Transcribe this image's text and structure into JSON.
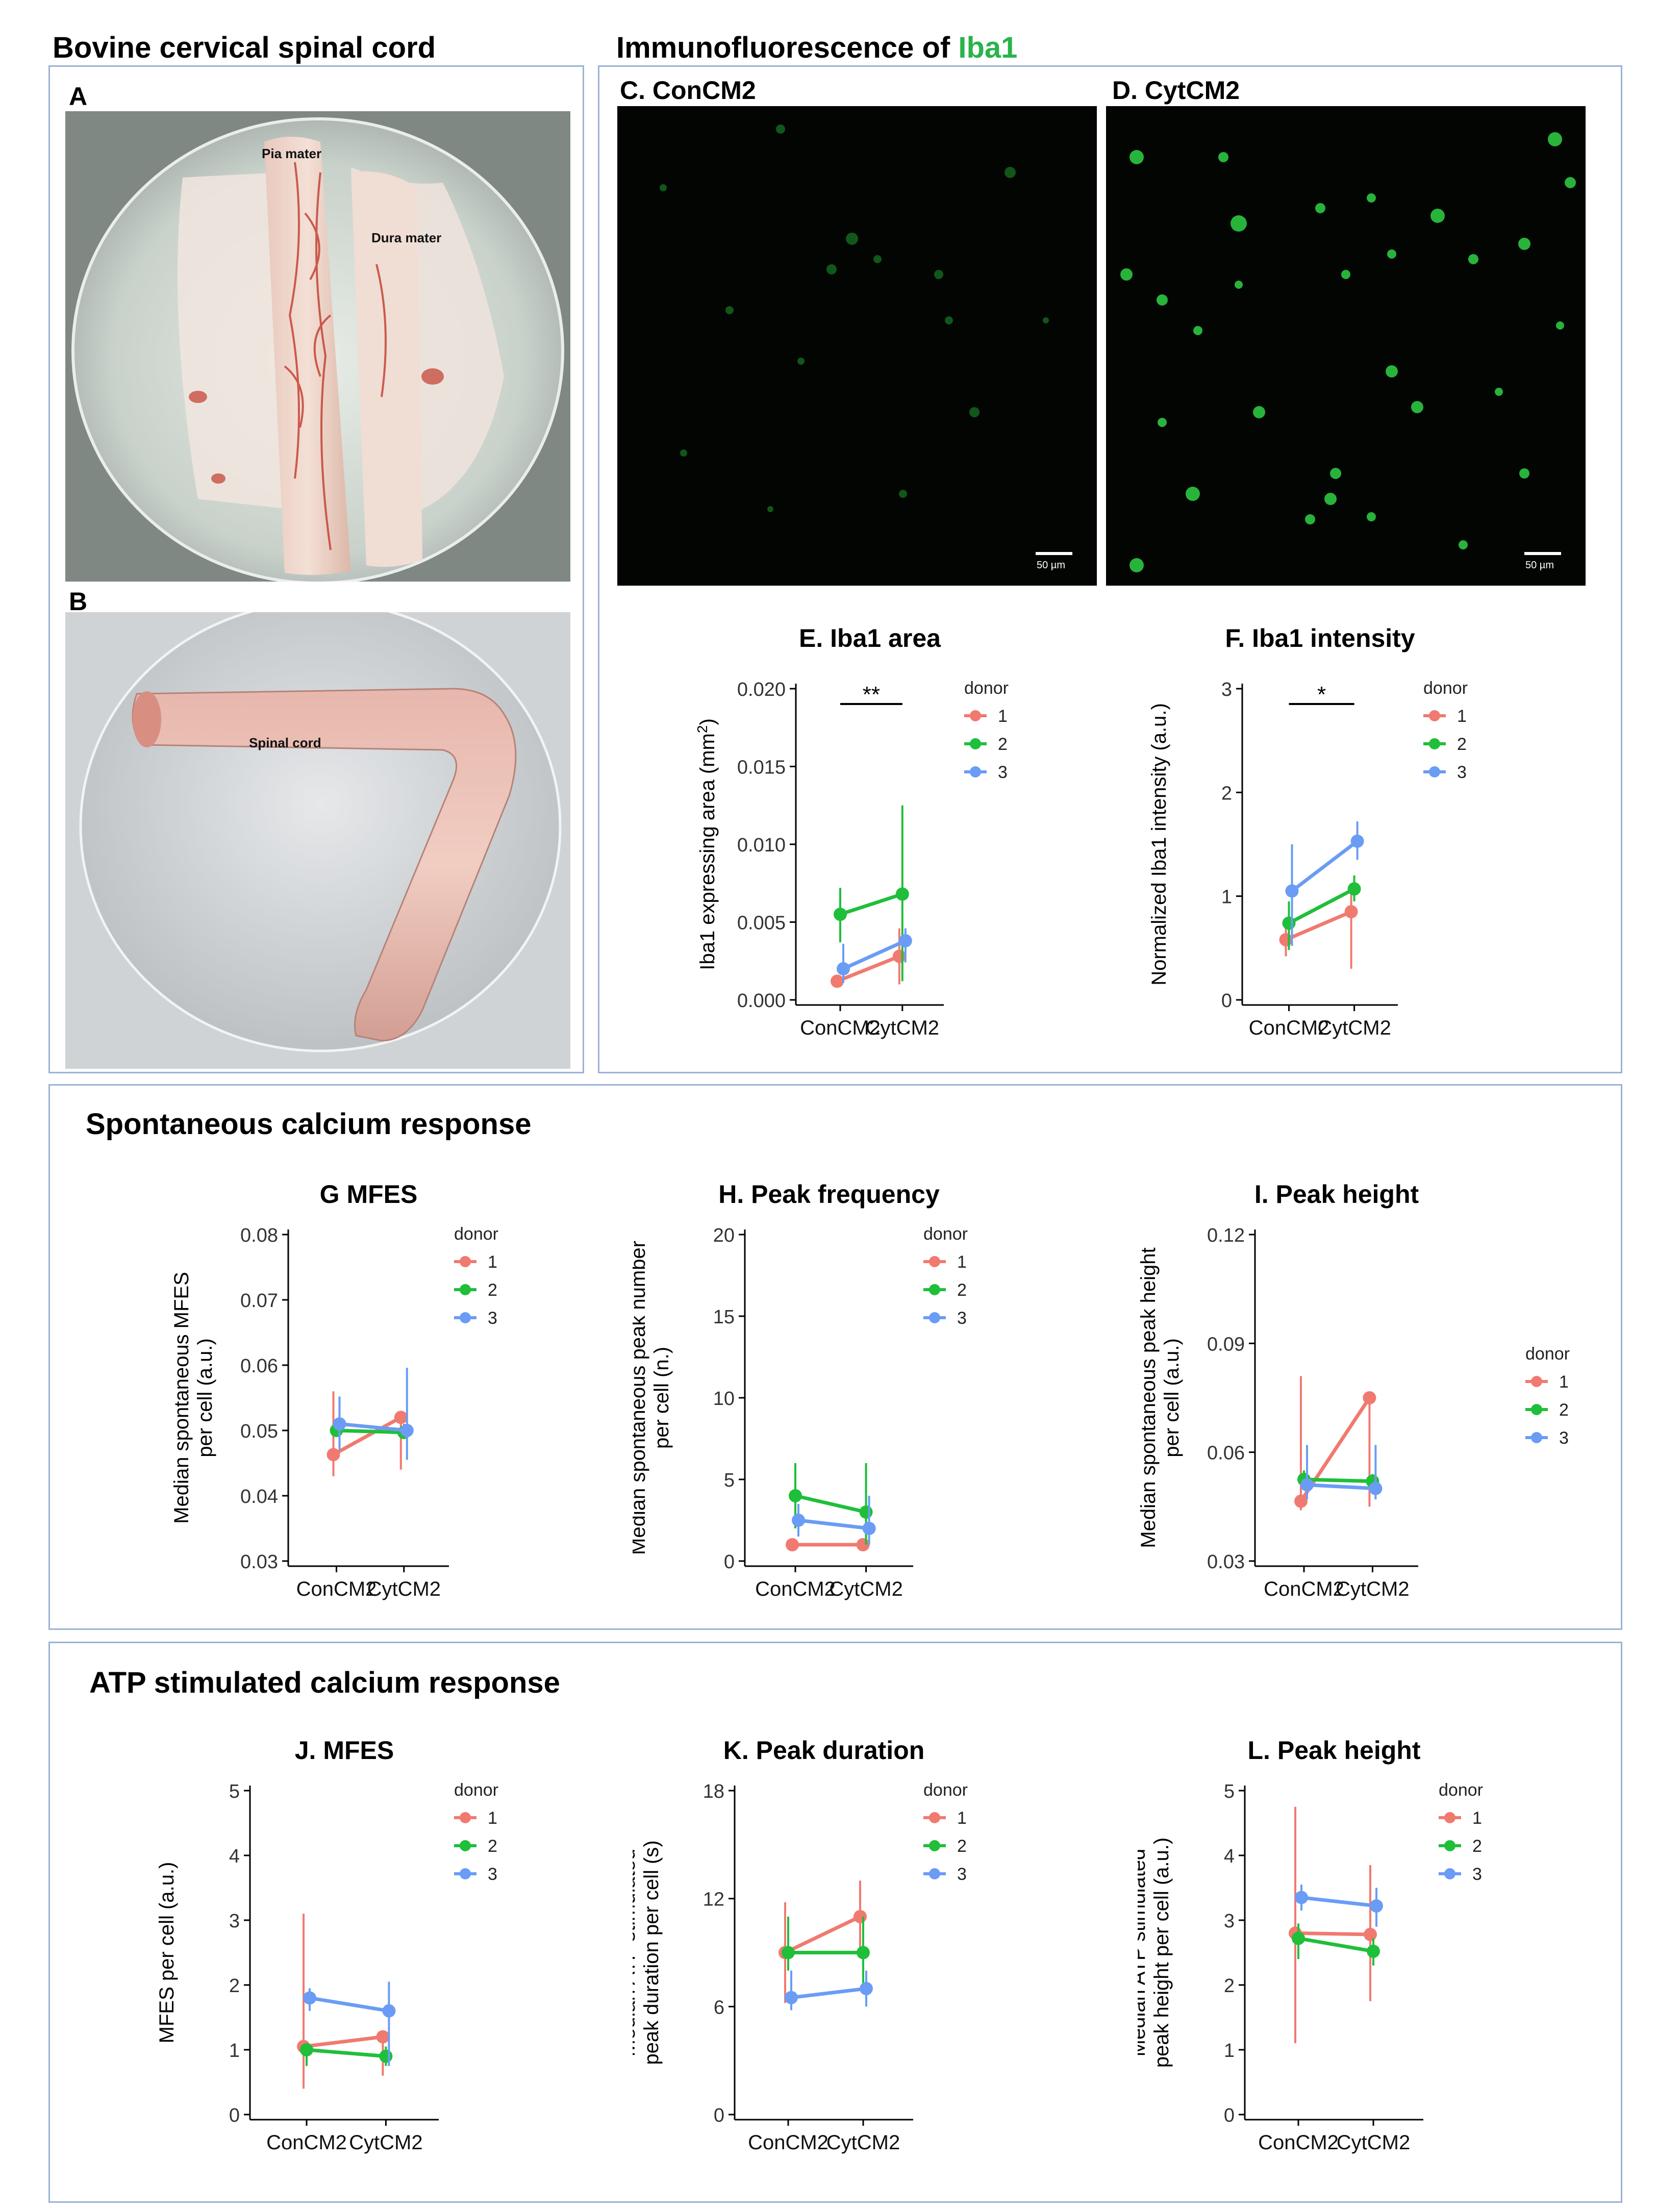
{
  "header": {
    "left_title": "Bovine cervical spinal cord",
    "right_title_prefix": "Immunofluorescence of ",
    "right_title_marker": "Iba1",
    "marker_color": "#29b34a"
  },
  "photos": {
    "a": {
      "label": "A",
      "annotations": [
        "Pia mater",
        "Dura mater"
      ]
    },
    "b": {
      "label": "B",
      "annotations": [
        "Spinal cord"
      ]
    }
  },
  "micrographs": {
    "c": {
      "label": "C.  ConCM2",
      "scale": "50 µm"
    },
    "d": {
      "label": "D.  CytCM2",
      "scale": "50 µm"
    }
  },
  "sections": {
    "spontaneous": "Spontaneous calcium response",
    "atp": "ATP stimulated calcium response"
  },
  "colors": {
    "donor1": "#f07a70",
    "donor2": "#1fbf3a",
    "donor3": "#6a9cf5"
  },
  "chart_data": [
    {
      "id": "E",
      "type": "line",
      "title": "E. Iba1 area",
      "categories": [
        "ConCM2",
        "CytCM2"
      ],
      "ylabel_lines": [
        "Iba1 expressing area (mm",
        ")"
      ],
      "ylabel_sup": "2",
      "ylim": [
        0,
        0.02
      ],
      "yticks": [
        0.0,
        0.005,
        0.01,
        0.015,
        0.02
      ],
      "ytick_labels": [
        "0.000",
        "0.005",
        "0.010",
        "0.015",
        "0.020"
      ],
      "legend_title": "donor",
      "significance": "**",
      "series": [
        {
          "name": "1",
          "values": [
            0.0012,
            0.0028
          ],
          "lower": [
            0.0008,
            0.001
          ],
          "upper": [
            0.0016,
            0.0046
          ]
        },
        {
          "name": "2",
          "values": [
            0.0055,
            0.0068
          ],
          "lower": [
            0.0037,
            0.0012
          ],
          "upper": [
            0.0072,
            0.0125
          ]
        },
        {
          "name": "3",
          "values": [
            0.002,
            0.0038
          ],
          "lower": [
            0.0011,
            0.0024
          ],
          "upper": [
            0.0036,
            0.0046
          ]
        }
      ]
    },
    {
      "id": "F",
      "type": "line",
      "title": "F. Iba1 intensity",
      "categories": [
        "ConCM2",
        "CytCM2"
      ],
      "ylabel_lines": [
        "Normalized Iba1 intensity (a.u.)"
      ],
      "ylim": [
        0,
        3
      ],
      "yticks": [
        0,
        1,
        2,
        3
      ],
      "ytick_labels": [
        "0",
        "1",
        "2",
        "3"
      ],
      "legend_title": "donor",
      "significance": "*",
      "series": [
        {
          "name": "1",
          "values": [
            0.58,
            0.85
          ],
          "lower": [
            0.42,
            0.3
          ],
          "upper": [
            0.72,
            1.08
          ]
        },
        {
          "name": "2",
          "values": [
            0.74,
            1.07
          ],
          "lower": [
            0.48,
            0.95
          ],
          "upper": [
            0.95,
            1.2
          ]
        },
        {
          "name": "3",
          "values": [
            1.05,
            1.53
          ],
          "lower": [
            0.52,
            1.35
          ],
          "upper": [
            1.5,
            1.72
          ]
        }
      ]
    },
    {
      "id": "G",
      "type": "line",
      "title": "G MFES",
      "categories": [
        "ConCM2",
        "CytCM2"
      ],
      "ylabel_lines": [
        "Median spontaneous MFES",
        "per cell (a.u.)"
      ],
      "ylim": [
        0.03,
        0.08
      ],
      "yticks": [
        0.03,
        0.04,
        0.05,
        0.06,
        0.07,
        0.08
      ],
      "ytick_labels": [
        "0.03",
        "0.04",
        "0.05",
        "0.06",
        "0.07",
        "0.08"
      ],
      "legend_title": "donor",
      "series": [
        {
          "name": "1",
          "values": [
            0.0463,
            0.052
          ],
          "lower": [
            0.043,
            0.044
          ],
          "upper": [
            0.056,
            0.052
          ]
        },
        {
          "name": "2",
          "values": [
            0.05,
            0.0497
          ],
          "lower": [
            0.049,
            0.049
          ],
          "upper": [
            0.051,
            0.051
          ]
        },
        {
          "name": "3",
          "values": [
            0.051,
            0.05
          ],
          "lower": [
            0.047,
            0.0455
          ],
          "upper": [
            0.0552,
            0.0596
          ]
        }
      ]
    },
    {
      "id": "H",
      "type": "line",
      "title": "H. Peak frequency",
      "categories": [
        "ConCM2",
        "CytCM2"
      ],
      "ylabel_lines": [
        "Median spontaneous peak number",
        "per cell (n.)"
      ],
      "ylim": [
        0,
        20
      ],
      "yticks": [
        0,
        5,
        10,
        15,
        20
      ],
      "ytick_labels": [
        "0",
        "5",
        "10",
        "15",
        "20"
      ],
      "legend_title": "donor",
      "series": [
        {
          "name": "1",
          "values": [
            1,
            1
          ],
          "lower": [
            1,
            1
          ],
          "upper": [
            1,
            1
          ]
        },
        {
          "name": "2",
          "values": [
            4,
            3
          ],
          "lower": [
            2,
            1
          ],
          "upper": [
            6,
            6
          ]
        },
        {
          "name": "3",
          "values": [
            2.5,
            2
          ],
          "lower": [
            1.5,
            1
          ],
          "upper": [
            3.5,
            4
          ]
        }
      ]
    },
    {
      "id": "I",
      "type": "line",
      "title": "I. Peak height",
      "categories": [
        "ConCM2",
        "CytCM2"
      ],
      "ylabel_lines": [
        "Median spontaneous peak height",
        "per cell (a.u.)"
      ],
      "ylim": [
        0.03,
        0.12
      ],
      "yticks": [
        0.03,
        0.06,
        0.09,
        0.12
      ],
      "ytick_labels": [
        "0.03",
        "0.06",
        "0.09",
        "0.12"
      ],
      "legend_title": "donor",
      "series": [
        {
          "name": "1",
          "values": [
            0.0465,
            0.075
          ],
          "lower": [
            0.044,
            0.045
          ],
          "upper": [
            0.081,
            0.075
          ]
        },
        {
          "name": "2",
          "values": [
            0.0525,
            0.052
          ],
          "lower": [
            0.05,
            0.05
          ],
          "upper": [
            0.055,
            0.054
          ]
        },
        {
          "name": "3",
          "values": [
            0.051,
            0.05
          ],
          "lower": [
            0.047,
            0.047
          ],
          "upper": [
            0.062,
            0.062
          ]
        }
      ]
    },
    {
      "id": "J",
      "type": "line",
      "title": "J. MFES",
      "categories": [
        "ConCM2",
        "CytCM2"
      ],
      "ylabel_lines": [
        "Median ATP stimulated",
        "MFES per cell (a.u.)"
      ],
      "ylim": [
        0,
        5
      ],
      "yticks": [
        0,
        1,
        2,
        3,
        4,
        5
      ],
      "ytick_labels": [
        "0",
        "1",
        "2",
        "3",
        "4",
        "5"
      ],
      "legend_title": "donor",
      "series": [
        {
          "name": "1",
          "values": [
            1.05,
            1.2
          ],
          "lower": [
            0.4,
            0.6
          ],
          "upper": [
            3.1,
            1.2
          ]
        },
        {
          "name": "2",
          "values": [
            1.0,
            0.9
          ],
          "lower": [
            0.75,
            0.75
          ],
          "upper": [
            1.1,
            1.05
          ]
        },
        {
          "name": "3",
          "values": [
            1.8,
            1.6
          ],
          "lower": [
            1.6,
            0.75
          ],
          "upper": [
            1.95,
            2.05
          ]
        }
      ]
    },
    {
      "id": "K",
      "type": "line",
      "title": "K. Peak duration",
      "categories": [
        "ConCM2",
        "CytCM2"
      ],
      "ylabel_lines": [
        "Median ATP stimulated",
        "peak duration per cell (s)"
      ],
      "ylim": [
        0,
        18
      ],
      "yticks": [
        0,
        6,
        12,
        18
      ],
      "ytick_labels": [
        "0",
        "6",
        "12",
        "18"
      ],
      "legend_title": "donor",
      "series": [
        {
          "name": "1",
          "values": [
            9,
            11
          ],
          "lower": [
            6.2,
            9
          ],
          "upper": [
            11.8,
            13
          ]
        },
        {
          "name": "2",
          "values": [
            9,
            9
          ],
          "lower": [
            8,
            7
          ],
          "upper": [
            11,
            11
          ]
        },
        {
          "name": "3",
          "values": [
            6.5,
            7
          ],
          "lower": [
            5.8,
            6
          ],
          "upper": [
            8,
            8
          ]
        }
      ]
    },
    {
      "id": "L",
      "type": "line",
      "title": "L. Peak height",
      "categories": [
        "ConCM2",
        "CytCM2"
      ],
      "ylabel_lines": [
        "Median ATP stimulated",
        "peak height per cell (a.u.)"
      ],
      "ylim": [
        0,
        5
      ],
      "yticks": [
        0,
        1,
        2,
        3,
        4,
        5
      ],
      "ytick_labels": [
        "0",
        "1",
        "2",
        "3",
        "4",
        "5"
      ],
      "legend_title": "donor",
      "series": [
        {
          "name": "1",
          "values": [
            2.8,
            2.78
          ],
          "lower": [
            1.1,
            1.75
          ],
          "upper": [
            4.75,
            3.85
          ]
        },
        {
          "name": "2",
          "values": [
            2.72,
            2.52
          ],
          "lower": [
            2.4,
            2.3
          ],
          "upper": [
            2.95,
            2.72
          ]
        },
        {
          "name": "3",
          "values": [
            3.35,
            3.22
          ],
          "lower": [
            3.15,
            2.9
          ],
          "upper": [
            3.55,
            3.5
          ]
        }
      ]
    }
  ]
}
